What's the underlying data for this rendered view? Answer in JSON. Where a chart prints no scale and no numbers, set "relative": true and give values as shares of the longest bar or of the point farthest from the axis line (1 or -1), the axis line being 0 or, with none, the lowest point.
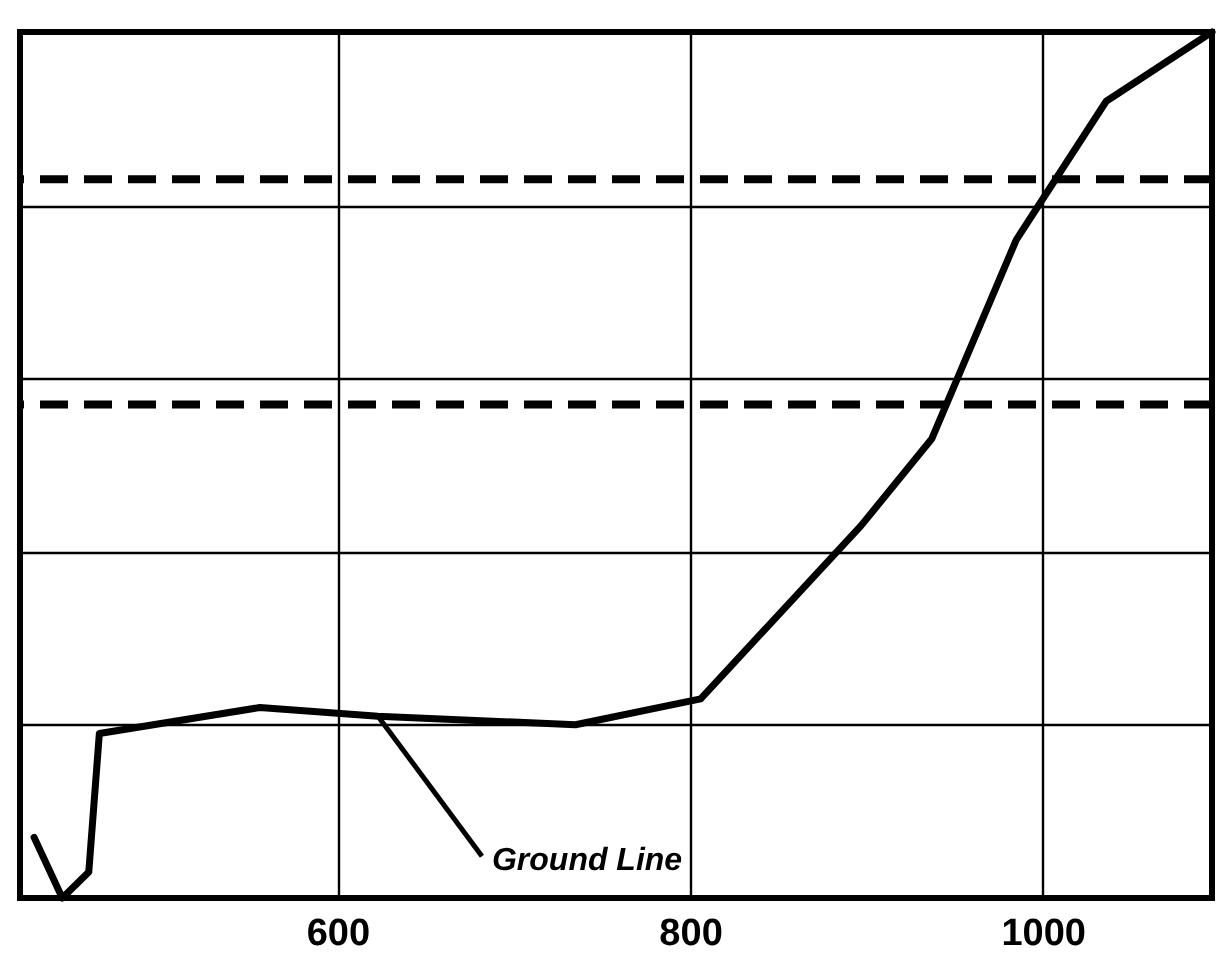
{
  "chart_data": {
    "type": "line",
    "relative": true,
    "x": [
      428,
      444,
      459,
      465,
      556,
      623,
      735,
      806,
      897,
      937,
      985,
      1036,
      1096
    ],
    "series": [
      {
        "color": "#000000",
        "values": [
          0.07,
          0,
          0.03,
          0.19,
          0.22,
          0.21,
          0.2,
          0.23,
          0.43,
          0.53,
          0.76,
          0.92,
          1
        ]
      }
    ],
    "xlim": [
      420,
      1096
    ],
    "xticks": [
      600,
      800,
      1000
    ],
    "ref_lines": [
      {
        "axis": "y",
        "value": 0.83,
        "line_style": "dashed",
        "color": "#000000"
      },
      {
        "axis": "y",
        "value": 0.57,
        "line_style": "dashed",
        "color": "#000000"
      }
    ],
    "annotations": [
      {
        "text": "Ground Line",
        "x": 623,
        "y": 0.21
      }
    ],
    "grid": true,
    "line_style": "solid",
    "marker": "none"
  }
}
